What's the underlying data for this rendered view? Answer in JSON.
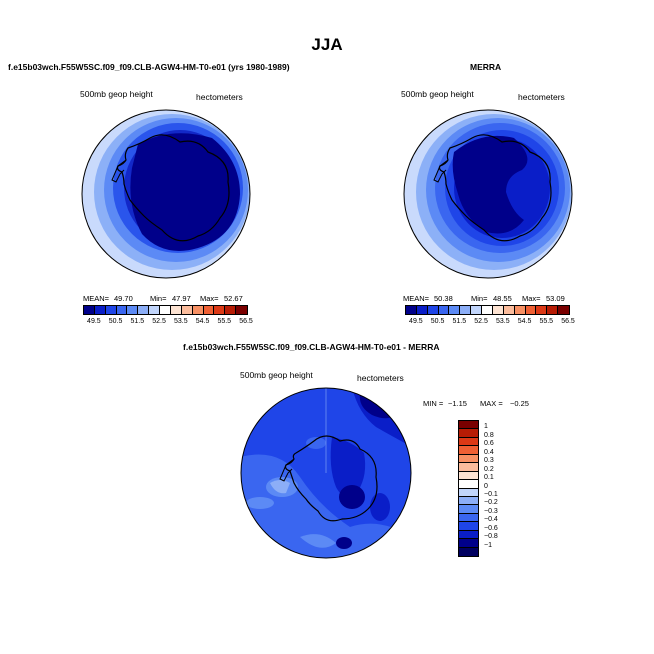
{
  "main_title": "JJA",
  "panel_left": {
    "subtitle": "f.e15b03wch.F55W5SC.f09_f09.CLB-AGW4-HM-T0-e01 (yrs 1980-1989)",
    "variable": "500mb geop height",
    "units": "hectometers",
    "mean_label": "MEAN=",
    "mean": "49.70",
    "min_label": "Min=",
    "min": "47.97",
    "max_label": "Max=",
    "max": "52.67"
  },
  "panel_right": {
    "subtitle": "MERRA",
    "variable": "500mb geop height",
    "units": "hectometers",
    "mean_label": "MEAN=",
    "mean": "50.38",
    "min_label": "Min=",
    "min": "48.55",
    "max_label": "Max=",
    "max": "53.09"
  },
  "colorbar_top": {
    "ticks": [
      "49.5",
      "50.5",
      "51.5",
      "52.5",
      "53.5",
      "54.5",
      "55.5",
      "56.5"
    ],
    "colors": [
      "#00008a",
      "#0a1ec8",
      "#1f45e8",
      "#3a66f0",
      "#5c8af5",
      "#8caef7",
      "#c1d5fb",
      "#ffffff",
      "#fde3d2",
      "#fbbc9c",
      "#f79063",
      "#ef6034",
      "#dc3916",
      "#b71c05",
      "#7a0000"
    ]
  },
  "panel_diff": {
    "subtitle": "f.e15b03wch.F55W5SC.f09_f09.CLB-AGW4-HM-T0-e01 - MERRA",
    "variable": "500mb geop height",
    "units": "hectometers",
    "min_label": "MIN =",
    "min": "−1.15",
    "max_label": "MAX =",
    "max": "−0.25"
  },
  "colorbar_diff": {
    "ticks": [
      "1",
      "0.8",
      "0.6",
      "0.4",
      "0.3",
      "0.2",
      "0.1",
      "0",
      "−0.1",
      "−0.2",
      "−0.3",
      "−0.4",
      "−0.6",
      "−0.8",
      "−1"
    ],
    "colors": [
      "#7a0000",
      "#b71c05",
      "#dc3916",
      "#ef6034",
      "#f79063",
      "#fbbc9c",
      "#fde3d2",
      "#ffffff",
      "#c1d5fb",
      "#8caef7",
      "#5c8af5",
      "#3a66f0",
      "#1f45e8",
      "#0a1ec8",
      "#00008a",
      "#000060"
    ]
  }
}
